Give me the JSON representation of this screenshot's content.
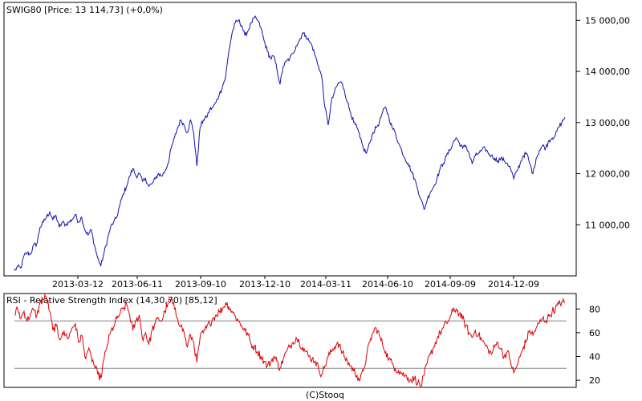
{
  "chart_data": [
    {
      "type": "line",
      "title": "SWIG80 [Price: 13 114,73] (+0,0%)",
      "x_tick_labels": [
        "2013-03-12",
        "2013-06-11",
        "2013-09-10",
        "2013-12-10",
        "2014-03-11",
        "2014-06-10",
        "2014-09-09",
        "2014-12-09"
      ],
      "y_ticks": [
        11000,
        12000,
        13000,
        14000,
        15000
      ],
      "y_tick_labels": [
        "11 000,00",
        "12 000,00",
        "13 000,00",
        "14 000,00",
        "15 000,00"
      ],
      "ylim": [
        10000,
        15350
      ],
      "line_color": "#1010b0",
      "x_range": [
        0,
        690
      ],
      "anchors": [
        [
          0,
          10100
        ],
        [
          4,
          10180
        ],
        [
          8,
          10150
        ],
        [
          12,
          10400
        ],
        [
          16,
          10450
        ],
        [
          20,
          10420
        ],
        [
          24,
          10600
        ],
        [
          28,
          10620
        ],
        [
          32,
          10950
        ],
        [
          36,
          11050
        ],
        [
          40,
          11150
        ],
        [
          44,
          11250
        ],
        [
          48,
          11100
        ],
        [
          52,
          11180
        ],
        [
          56,
          10950
        ],
        [
          60,
          11050
        ],
        [
          64,
          11000
        ],
        [
          68,
          11050
        ],
        [
          72,
          11100
        ],
        [
          76,
          11200
        ],
        [
          80,
          11050
        ],
        [
          84,
          11150
        ],
        [
          88,
          10900
        ],
        [
          92,
          10800
        ],
        [
          96,
          10900
        ],
        [
          100,
          10600
        ],
        [
          104,
          10350
        ],
        [
          108,
          10200
        ],
        [
          112,
          10450
        ],
        [
          116,
          10700
        ],
        [
          120,
          10950
        ],
        [
          124,
          11050
        ],
        [
          128,
          11150
        ],
        [
          132,
          11400
        ],
        [
          136,
          11600
        ],
        [
          140,
          11750
        ],
        [
          144,
          11950
        ],
        [
          148,
          12100
        ],
        [
          152,
          11950
        ],
        [
          156,
          12000
        ],
        [
          160,
          11850
        ],
        [
          164,
          11900
        ],
        [
          168,
          11750
        ],
        [
          172,
          11800
        ],
        [
          176,
          11900
        ],
        [
          180,
          12000
        ],
        [
          184,
          11950
        ],
        [
          188,
          12050
        ],
        [
          192,
          12200
        ],
        [
          196,
          12500
        ],
        [
          200,
          12700
        ],
        [
          204,
          12900
        ],
        [
          208,
          13050
        ],
        [
          212,
          12950
        ],
        [
          216,
          12800
        ],
        [
          220,
          13050
        ],
        [
          224,
          12800
        ],
        [
          228,
          12150
        ],
        [
          232,
          12900
        ],
        [
          236,
          13050
        ],
        [
          240,
          13100
        ],
        [
          244,
          13250
        ],
        [
          248,
          13300
        ],
        [
          252,
          13400
        ],
        [
          256,
          13550
        ],
        [
          260,
          13700
        ],
        [
          264,
          13900
        ],
        [
          268,
          14400
        ],
        [
          272,
          14750
        ],
        [
          276,
          14950
        ],
        [
          280,
          15000
        ],
        [
          284,
          14900
        ],
        [
          288,
          14700
        ],
        [
          292,
          14800
        ],
        [
          296,
          14950
        ],
        [
          300,
          15050
        ],
        [
          304,
          15000
        ],
        [
          308,
          14850
        ],
        [
          312,
          14600
        ],
        [
          316,
          14400
        ],
        [
          320,
          14250
        ],
        [
          324,
          14300
        ],
        [
          328,
          14050
        ],
        [
          332,
          13750
        ],
        [
          336,
          14100
        ],
        [
          340,
          14200
        ],
        [
          344,
          14250
        ],
        [
          348,
          14350
        ],
        [
          352,
          14500
        ],
        [
          356,
          14600
        ],
        [
          360,
          14750
        ],
        [
          364,
          14700
        ],
        [
          368,
          14600
        ],
        [
          372,
          14500
        ],
        [
          376,
          14300
        ],
        [
          380,
          14100
        ],
        [
          384,
          13900
        ],
        [
          388,
          13300
        ],
        [
          392,
          12950
        ],
        [
          396,
          13400
        ],
        [
          400,
          13600
        ],
        [
          404,
          13750
        ],
        [
          408,
          13800
        ],
        [
          412,
          13650
        ],
        [
          416,
          13400
        ],
        [
          420,
          13200
        ],
        [
          424,
          13000
        ],
        [
          428,
          12900
        ],
        [
          432,
          12700
        ],
        [
          436,
          12500
        ],
        [
          440,
          12400
        ],
        [
          444,
          12600
        ],
        [
          448,
          12800
        ],
        [
          452,
          12900
        ],
        [
          456,
          13000
        ],
        [
          460,
          13200
        ],
        [
          464,
          13300
        ],
        [
          468,
          13100
        ],
        [
          472,
          12900
        ],
        [
          476,
          12800
        ],
        [
          480,
          12600
        ],
        [
          484,
          12450
        ],
        [
          488,
          12300
        ],
        [
          492,
          12200
        ],
        [
          496,
          12050
        ],
        [
          500,
          11900
        ],
        [
          504,
          11700
        ],
        [
          508,
          11500
        ],
        [
          512,
          11300
        ],
        [
          516,
          11500
        ],
        [
          520,
          11650
        ],
        [
          524,
          11750
        ],
        [
          528,
          11900
        ],
        [
          532,
          12100
        ],
        [
          536,
          12200
        ],
        [
          540,
          12350
        ],
        [
          544,
          12450
        ],
        [
          548,
          12600
        ],
        [
          552,
          12700
        ],
        [
          556,
          12600
        ],
        [
          560,
          12500
        ],
        [
          564,
          12550
        ],
        [
          568,
          12400
        ],
        [
          572,
          12200
        ],
        [
          576,
          12350
        ],
        [
          580,
          12400
        ],
        [
          584,
          12450
        ],
        [
          588,
          12500
        ],
        [
          592,
          12400
        ],
        [
          596,
          12350
        ],
        [
          600,
          12300
        ],
        [
          604,
          12250
        ],
        [
          608,
          12300
        ],
        [
          612,
          12250
        ],
        [
          616,
          12200
        ],
        [
          620,
          12100
        ],
        [
          624,
          11900
        ],
        [
          628,
          12050
        ],
        [
          632,
          12200
        ],
        [
          636,
          12350
        ],
        [
          640,
          12400
        ],
        [
          644,
          12200
        ],
        [
          648,
          12000
        ],
        [
          652,
          12300
        ],
        [
          656,
          12450
        ],
        [
          660,
          12550
        ],
        [
          664,
          12500
        ],
        [
          668,
          12650
        ],
        [
          672,
          12700
        ],
        [
          676,
          12750
        ],
        [
          680,
          12900
        ],
        [
          684,
          13000
        ],
        [
          688,
          13100
        ]
      ]
    },
    {
      "type": "line",
      "title": "RSI - Relative Strength Index (14,30,70) [85,12]",
      "y_ticks": [
        20,
        40,
        60,
        80
      ],
      "y_tick_labels": [
        "20",
        "40",
        "60",
        "80"
      ],
      "ylim": [
        14,
        93
      ],
      "reference_lines": [
        30,
        70
      ],
      "line_color": "#dd0000",
      "x_range": [
        0,
        690
      ],
      "anchors": [
        [
          0,
          75
        ],
        [
          4,
          80
        ],
        [
          8,
          72
        ],
        [
          12,
          78
        ],
        [
          16,
          70
        ],
        [
          20,
          76
        ],
        [
          24,
          79
        ],
        [
          28,
          74
        ],
        [
          32,
          85
        ],
        [
          36,
          88
        ],
        [
          40,
          90
        ],
        [
          44,
          78
        ],
        [
          48,
          62
        ],
        [
          52,
          66
        ],
        [
          56,
          55
        ],
        [
          60,
          60
        ],
        [
          64,
          58
        ],
        [
          68,
          56
        ],
        [
          72,
          64
        ],
        [
          76,
          68
        ],
        [
          80,
          52
        ],
        [
          84,
          58
        ],
        [
          88,
          40
        ],
        [
          92,
          45
        ],
        [
          96,
          40
        ],
        [
          100,
          32
        ],
        [
          104,
          25
        ],
        [
          108,
          22
        ],
        [
          112,
          38
        ],
        [
          116,
          50
        ],
        [
          120,
          60
        ],
        [
          124,
          65
        ],
        [
          128,
          72
        ],
        [
          132,
          76
        ],
        [
          136,
          80
        ],
        [
          140,
          84
        ],
        [
          144,
          75
        ],
        [
          148,
          62
        ],
        [
          152,
          70
        ],
        [
          156,
          75
        ],
        [
          160,
          55
        ],
        [
          164,
          60
        ],
        [
          168,
          50
        ],
        [
          172,
          62
        ],
        [
          176,
          68
        ],
        [
          180,
          72
        ],
        [
          184,
          70
        ],
        [
          188,
          78
        ],
        [
          192,
          85
        ],
        [
          196,
          88
        ],
        [
          200,
          80
        ],
        [
          204,
          72
        ],
        [
          208,
          66
        ],
        [
          212,
          60
        ],
        [
          216,
          48
        ],
        [
          220,
          58
        ],
        [
          224,
          52
        ],
        [
          228,
          35
        ],
        [
          232,
          56
        ],
        [
          236,
          60
        ],
        [
          240,
          64
        ],
        [
          244,
          68
        ],
        [
          248,
          72
        ],
        [
          252,
          75
        ],
        [
          256,
          78
        ],
        [
          260,
          80
        ],
        [
          264,
          85
        ],
        [
          268,
          82
        ],
        [
          272,
          78
        ],
        [
          276,
          74
        ],
        [
          280,
          70
        ],
        [
          284,
          66
        ],
        [
          288,
          62
        ],
        [
          292,
          58
        ],
        [
          296,
          50
        ],
        [
          300,
          48
        ],
        [
          304,
          44
        ],
        [
          308,
          40
        ],
        [
          312,
          36
        ],
        [
          316,
          32
        ],
        [
          320,
          35
        ],
        [
          324,
          40
        ],
        [
          328,
          36
        ],
        [
          332,
          30
        ],
        [
          336,
          38
        ],
        [
          340,
          44
        ],
        [
          344,
          48
        ],
        [
          348,
          52
        ],
        [
          352,
          56
        ],
        [
          356,
          52
        ],
        [
          360,
          48
        ],
        [
          364,
          44
        ],
        [
          368,
          40
        ],
        [
          372,
          38
        ],
        [
          376,
          36
        ],
        [
          380,
          30
        ],
        [
          384,
          25
        ],
        [
          388,
          32
        ],
        [
          392,
          40
        ],
        [
          396,
          44
        ],
        [
          400,
          48
        ],
        [
          404,
          52
        ],
        [
          408,
          46
        ],
        [
          412,
          40
        ],
        [
          416,
          36
        ],
        [
          420,
          32
        ],
        [
          424,
          28
        ],
        [
          428,
          24
        ],
        [
          432,
          20
        ],
        [
          436,
          28
        ],
        [
          440,
          40
        ],
        [
          444,
          52
        ],
        [
          448,
          60
        ],
        [
          452,
          64
        ],
        [
          456,
          58
        ],
        [
          460,
          50
        ],
        [
          464,
          44
        ],
        [
          468,
          38
        ],
        [
          472,
          34
        ],
        [
          476,
          30
        ],
        [
          480,
          28
        ],
        [
          484,
          26
        ],
        [
          488,
          24
        ],
        [
          492,
          22
        ],
        [
          496,
          20
        ],
        [
          500,
          22
        ],
        [
          504,
          18
        ],
        [
          508,
          15
        ],
        [
          512,
          24
        ],
        [
          516,
          35
        ],
        [
          520,
          42
        ],
        [
          524,
          48
        ],
        [
          528,
          55
        ],
        [
          532,
          60
        ],
        [
          536,
          64
        ],
        [
          540,
          68
        ],
        [
          544,
          72
        ],
        [
          548,
          78
        ],
        [
          552,
          80
        ],
        [
          556,
          76
        ],
        [
          560,
          72
        ],
        [
          564,
          66
        ],
        [
          568,
          60
        ],
        [
          572,
          56
        ],
        [
          576,
          62
        ],
        [
          580,
          58
        ],
        [
          584,
          54
        ],
        [
          588,
          50
        ],
        [
          592,
          46
        ],
        [
          596,
          42
        ],
        [
          600,
          48
        ],
        [
          604,
          52
        ],
        [
          608,
          46
        ],
        [
          612,
          40
        ],
        [
          616,
          44
        ],
        [
          620,
          36
        ],
        [
          624,
          26
        ],
        [
          628,
          32
        ],
        [
          632,
          40
        ],
        [
          636,
          48
        ],
        [
          640,
          54
        ],
        [
          644,
          62
        ],
        [
          648,
          58
        ],
        [
          652,
          64
        ],
        [
          656,
          68
        ],
        [
          660,
          72
        ],
        [
          664,
          70
        ],
        [
          668,
          74
        ],
        [
          672,
          78
        ],
        [
          676,
          80
        ],
        [
          680,
          84
        ],
        [
          684,
          86
        ],
        [
          688,
          85
        ]
      ]
    }
  ],
  "footer": "(C)Stooq"
}
